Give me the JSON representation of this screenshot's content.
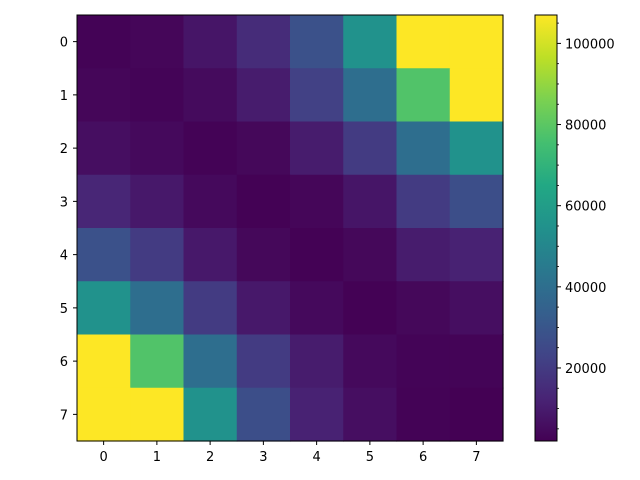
{
  "chart_data": {
    "type": "heatmap",
    "title": "",
    "xlabel": "",
    "ylabel": "",
    "x_categories": [
      "0",
      "1",
      "2",
      "3",
      "4",
      "5",
      "6",
      "7"
    ],
    "y_categories": [
      "0",
      "1",
      "2",
      "3",
      "4",
      "5",
      "6",
      "7"
    ],
    "values": [
      [
        2500,
        3500,
        8000,
        15000,
        28000,
        55000,
        107000,
        107000
      ],
      [
        3500,
        3000,
        5000,
        10000,
        22000,
        40000,
        78000,
        107000
      ],
      [
        6000,
        4500,
        2500,
        4000,
        10000,
        20000,
        40000,
        55000
      ],
      [
        13000,
        9000,
        4500,
        2200,
        3500,
        8000,
        20000,
        27000
      ],
      [
        28000,
        20000,
        9000,
        4000,
        2200,
        4000,
        10000,
        12000
      ],
      [
        55000,
        40000,
        20000,
        9000,
        4500,
        2200,
        4000,
        6000
      ],
      [
        107000,
        78000,
        40000,
        20000,
        10000,
        4500,
        3000,
        3000
      ],
      [
        107000,
        107000,
        55000,
        27000,
        12000,
        6000,
        2500,
        2000
      ]
    ],
    "colormap": "viridis",
    "vmin": 2000,
    "vmax": 107000,
    "colorbar": {
      "ticks": [
        20000,
        40000,
        60000,
        80000,
        100000
      ],
      "tick_labels": [
        "20000",
        "40000",
        "60000",
        "80000",
        "100000"
      ],
      "position": "right"
    },
    "grid": false
  }
}
